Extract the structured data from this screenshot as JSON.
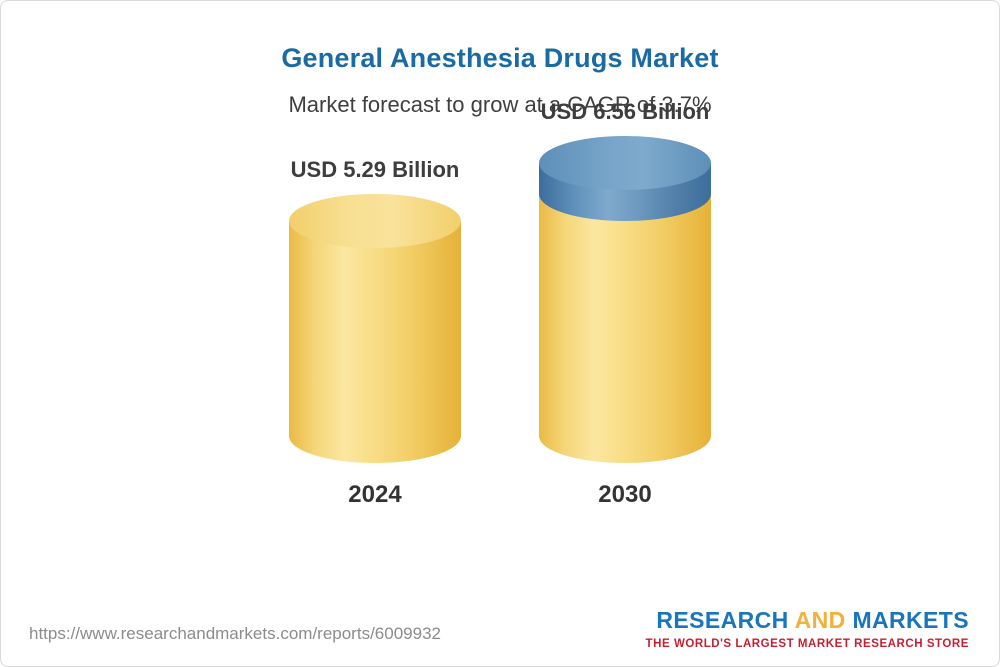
{
  "page": {
    "title": "General Anesthesia Drugs Market",
    "subtitle": "Market forecast to grow at a CAGR of 3.7%"
  },
  "chart_data": {
    "type": "bar",
    "title": "General Anesthesia Drugs Market",
    "subtitle": "Market forecast to grow at a CAGR of 3.7%",
    "categories": [
      "2024",
      "2030"
    ],
    "values": [
      5.29,
      6.56
    ],
    "labels": [
      "USD 5.29 Billion",
      "USD 6.56 Billion"
    ],
    "unit": "USD Billion",
    "cagr": "3.7%",
    "ylim": [
      0,
      6.56
    ],
    "grid": false,
    "legend": "none",
    "colors": {
      "base_bar": "#F2CD64",
      "growth_segment": "#5F90BA",
      "title_text": "#1A6BA3"
    }
  },
  "footer": {
    "url": "https://www.researchandmarkets.com/reports/6009932",
    "logo": {
      "research": "RESEARCH",
      "and": "AND",
      "markets": "MARKETS",
      "tagline": "THE WORLD'S LARGEST MARKET RESEARCH STORE"
    },
    "logo_colors": {
      "blue": "#1A75BC",
      "gold": "#F2B13A",
      "tagline_red": "#C42032"
    }
  }
}
